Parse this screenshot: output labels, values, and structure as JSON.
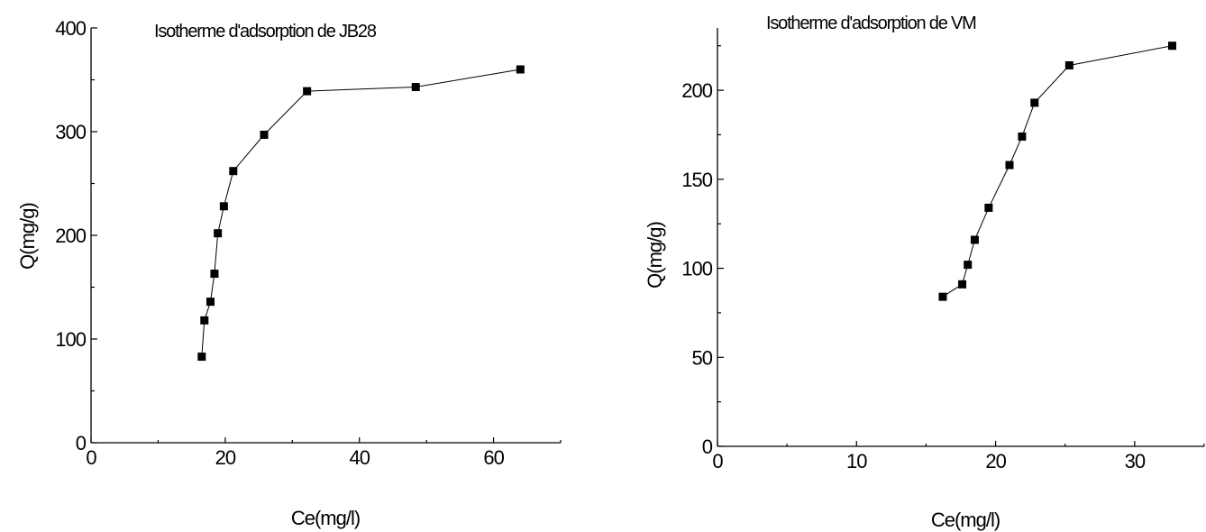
{
  "chart_data": [
    {
      "type": "line",
      "title": "Isotherme d'adsorption de JB28",
      "xlabel": "Ce(mg/l)",
      "ylabel": "Q(mg/g)",
      "xlim": [
        0,
        70
      ],
      "ylim": [
        0,
        400
      ],
      "xticks": [
        0,
        20,
        40,
        60
      ],
      "yticks": [
        0,
        100,
        200,
        300,
        400
      ],
      "grid": false,
      "series": [
        {
          "marker": "square",
          "color": "#000000",
          "x": [
            16.5,
            16.9,
            17.8,
            18.4,
            18.9,
            19.8,
            21.2,
            25.8,
            32.2,
            48.4,
            64.0
          ],
          "y": [
            83,
            118,
            136,
            163,
            202,
            228,
            262,
            297,
            339,
            343,
            360
          ]
        }
      ]
    },
    {
      "type": "line",
      "title": "Isotherme d'adsorption de VM",
      "xlabel": "Ce(mg/l)",
      "ylabel": "Q(mg/g)",
      "xlim": [
        0,
        35
      ],
      "ylim": [
        0,
        235
      ],
      "xticks": [
        0,
        10,
        20,
        30
      ],
      "yticks": [
        0,
        50,
        100,
        150,
        200
      ],
      "grid": false,
      "series": [
        {
          "marker": "square",
          "color": "#000000",
          "x": [
            16.2,
            17.6,
            18.0,
            18.5,
            19.5,
            21.0,
            21.9,
            22.8,
            25.3,
            32.7
          ],
          "y": [
            84,
            91,
            102,
            116,
            134,
            158,
            174,
            193,
            214,
            225
          ]
        }
      ]
    }
  ]
}
